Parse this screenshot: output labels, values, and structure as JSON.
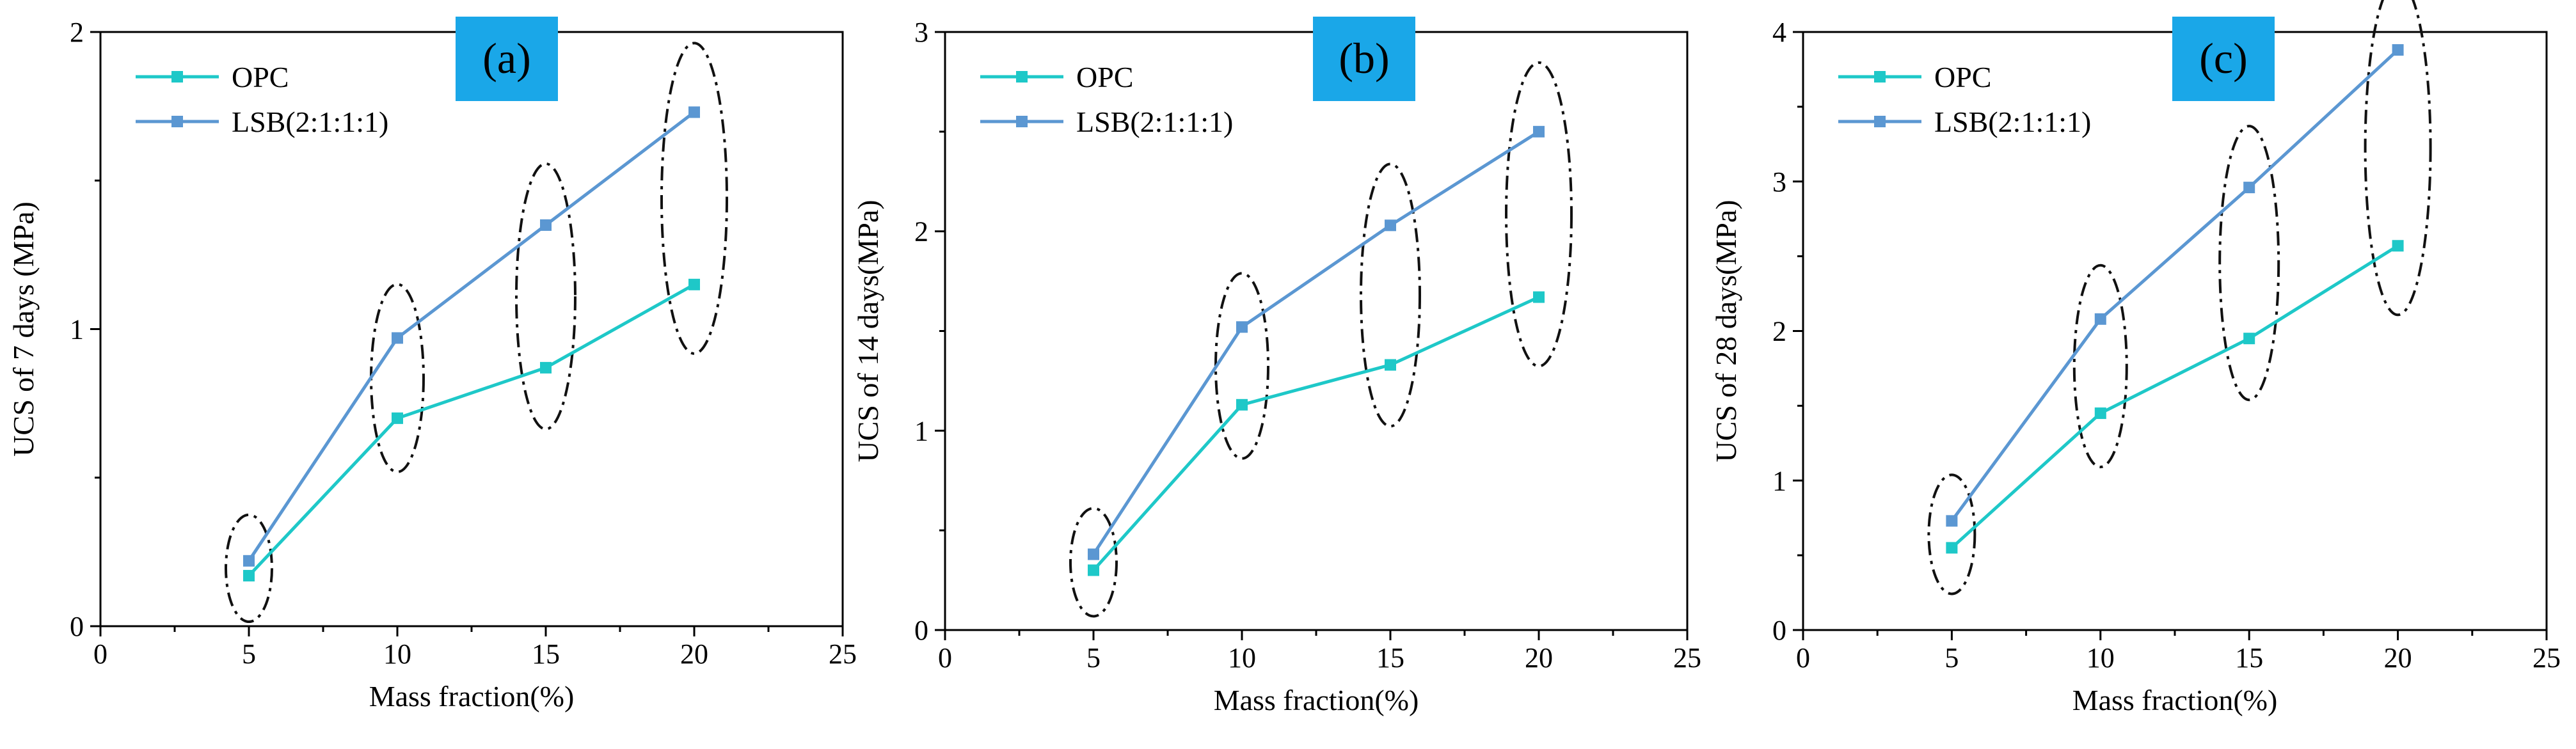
{
  "colors": {
    "opc": "#1ec8c8",
    "lsb": "#5b97d2",
    "panel_tag_bg": "#1aa7e8",
    "ellipse": "#111111",
    "axis": "#000000"
  },
  "chart_data": [
    {
      "type": "line",
      "panel": "(a)",
      "xlabel": "Mass fraction(%)",
      "ylabel": "UCS of  7 days (MPa)",
      "xlim": [
        0,
        25
      ],
      "ylim": [
        0,
        2
      ],
      "xticks": [
        0,
        5,
        10,
        15,
        20,
        25
      ],
      "yticks": [
        0,
        1,
        2
      ],
      "legend_position": "top-left",
      "series": [
        {
          "name": "OPC",
          "x": [
            5,
            10,
            15,
            20
          ],
          "y": [
            0.17,
            0.7,
            0.87,
            1.15
          ]
        },
        {
          "name": "LSB(2:1:1:1)",
          "x": [
            5,
            10,
            15,
            20
          ],
          "y": [
            0.22,
            0.97,
            1.35,
            1.73
          ]
        }
      ],
      "annotations": "dash-dot ellipses grouping the OPC and LSB values at each mass fraction"
    },
    {
      "type": "line",
      "panel": "(b)",
      "xlabel": "Mass fraction(%)",
      "ylabel": "UCS of 14 days(MPa)",
      "xlim": [
        0,
        25
      ],
      "ylim": [
        0,
        3
      ],
      "xticks": [
        0,
        5,
        10,
        15,
        20,
        25
      ],
      "yticks": [
        0,
        1,
        2,
        3
      ],
      "legend_position": "top-left",
      "series": [
        {
          "name": "OPC",
          "x": [
            5,
            10,
            15,
            20
          ],
          "y": [
            0.3,
            1.13,
            1.33,
            1.67
          ]
        },
        {
          "name": "LSB(2:1:1:1)",
          "x": [
            5,
            10,
            15,
            20
          ],
          "y": [
            0.38,
            1.52,
            2.03,
            2.5
          ]
        }
      ],
      "annotations": "dash-dot ellipses grouping the OPC and LSB values at each mass fraction"
    },
    {
      "type": "line",
      "panel": "(c)",
      "xlabel": "Mass fraction(%)",
      "ylabel": "UCS of 28 days(MPa)",
      "xlim": [
        0,
        25
      ],
      "ylim": [
        0,
        4
      ],
      "xticks": [
        0,
        5,
        10,
        15,
        20,
        25
      ],
      "yticks": [
        0,
        1,
        2,
        3,
        4
      ],
      "legend_position": "top-left",
      "series": [
        {
          "name": "OPC",
          "x": [
            5,
            10,
            15,
            20
          ],
          "y": [
            0.55,
            1.45,
            1.95,
            2.57
          ]
        },
        {
          "name": "LSB(2:1:1:1)",
          "x": [
            5,
            10,
            15,
            20
          ],
          "y": [
            0.73,
            2.08,
            2.96,
            3.88
          ]
        }
      ],
      "annotations": "dash-dot ellipses grouping the OPC and LSB values at each mass fraction"
    }
  ]
}
